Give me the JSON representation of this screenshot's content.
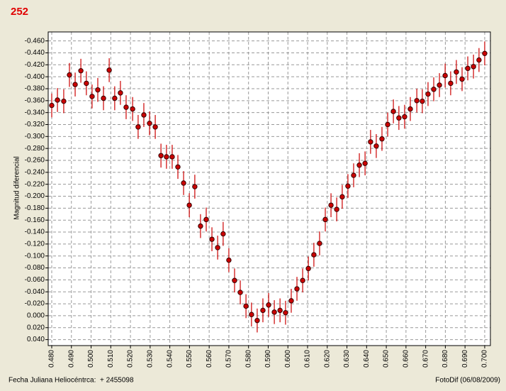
{
  "chart_data": {
    "type": "scatter",
    "title": "252",
    "y_label": "Magnitud diferencial",
    "x_label": "Fecha Juliana Heliocéntrca:  + 2455098",
    "credit": "FotoDif (06/08/2009)",
    "series": [
      {
        "color": "#cc0000",
        "error": 0.02,
        "x": [
          0.48,
          0.4829,
          0.4861,
          0.489,
          0.4919,
          0.4948,
          0.4976,
          0.5005,
          0.5034,
          0.5063,
          0.5092,
          0.512,
          0.5149,
          0.5178,
          0.5211,
          0.5239,
          0.5268,
          0.5297,
          0.5326,
          0.5355,
          0.5383,
          0.5412,
          0.5441,
          0.547,
          0.5499,
          0.5527,
          0.5556,
          0.5585,
          0.5614,
          0.5643,
          0.5671,
          0.57,
          0.5729,
          0.5758,
          0.5787,
          0.5815,
          0.5844,
          0.5873,
          0.5902,
          0.5931,
          0.596,
          0.5988,
          0.6017,
          0.6046,
          0.6075,
          0.6104,
          0.6132,
          0.6161,
          0.619,
          0.6219,
          0.6248,
          0.6276,
          0.6305,
          0.6334,
          0.6363,
          0.6392,
          0.642,
          0.6449,
          0.6478,
          0.6507,
          0.6536,
          0.6564,
          0.6593,
          0.6622,
          0.6655,
          0.6683,
          0.6712,
          0.6741,
          0.677,
          0.6799,
          0.6827,
          0.6856,
          0.6885,
          0.6914,
          0.6943,
          0.6971,
          0.7
        ],
        "values": [
          -0.352,
          -0.361,
          -0.359,
          -0.403,
          -0.387,
          -0.41,
          -0.389,
          -0.367,
          -0.378,
          -0.364,
          -0.411,
          -0.364,
          -0.373,
          -0.349,
          -0.346,
          -0.316,
          -0.336,
          -0.322,
          -0.316,
          -0.268,
          -0.266,
          -0.266,
          -0.249,
          -0.222,
          -0.185,
          -0.216,
          -0.15,
          -0.161,
          -0.128,
          -0.114,
          -0.137,
          -0.093,
          -0.059,
          -0.039,
          -0.016,
          -0.002,
          0.008,
          -0.009,
          -0.018,
          -0.006,
          -0.009,
          -0.005,
          -0.025,
          -0.045,
          -0.059,
          -0.079,
          -0.102,
          -0.121,
          -0.161,
          -0.185,
          -0.178,
          -0.199,
          -0.217,
          -0.235,
          -0.252,
          -0.255,
          -0.291,
          -0.284,
          -0.296,
          -0.32,
          -0.342,
          -0.331,
          -0.333,
          -0.346,
          -0.36,
          -0.359,
          -0.371,
          -0.379,
          -0.386,
          -0.402,
          -0.389,
          -0.408,
          -0.396,
          -0.414,
          -0.417,
          -0.428,
          -0.439
        ]
      }
    ],
    "xlim": [
      0.4782,
      0.7029
    ],
    "ylim": [
      0.05,
      -0.475
    ],
    "xticks": [
      {
        "value": 0.48,
        "label": "0.480"
      },
      {
        "value": 0.49,
        "label": "0.490"
      },
      {
        "value": 0.5,
        "label": "0.500"
      },
      {
        "value": 0.51,
        "label": "0.510"
      },
      {
        "value": 0.52,
        "label": "0.520"
      },
      {
        "value": 0.53,
        "label": "0.530"
      },
      {
        "value": 0.54,
        "label": "0.540"
      },
      {
        "value": 0.55,
        "label": "0.550"
      },
      {
        "value": 0.56,
        "label": "0.560"
      },
      {
        "value": 0.57,
        "label": "0.570"
      },
      {
        "value": 0.58,
        "label": "0.580"
      },
      {
        "value": 0.59,
        "label": "0.590"
      },
      {
        "value": 0.6,
        "label": "0.600"
      },
      {
        "value": 0.61,
        "label": "0.610"
      },
      {
        "value": 0.62,
        "label": "0.620"
      },
      {
        "value": 0.63,
        "label": "0.630"
      },
      {
        "value": 0.64,
        "label": "0.640"
      },
      {
        "value": 0.65,
        "label": "0.650"
      },
      {
        "value": 0.66,
        "label": "0.660"
      },
      {
        "value": 0.67,
        "label": "0.670"
      },
      {
        "value": 0.68,
        "label": "0.680"
      },
      {
        "value": 0.69,
        "label": "0.690"
      },
      {
        "value": 0.7,
        "label": "0.700"
      }
    ],
    "yticks": [
      {
        "value": -0.46,
        "label": "-0.460"
      },
      {
        "value": -0.44,
        "label": "-0.440"
      },
      {
        "value": -0.42,
        "label": "-0.420"
      },
      {
        "value": -0.4,
        "label": "-0.400"
      },
      {
        "value": -0.38,
        "label": "-0.380"
      },
      {
        "value": -0.36,
        "label": "-0.360"
      },
      {
        "value": -0.34,
        "label": "-0.340"
      },
      {
        "value": -0.32,
        "label": "-0.320"
      },
      {
        "value": -0.3,
        "label": "-0.300"
      },
      {
        "value": -0.28,
        "label": "-0.280"
      },
      {
        "value": -0.26,
        "label": "-0.260"
      },
      {
        "value": -0.24,
        "label": "-0.240"
      },
      {
        "value": -0.22,
        "label": "-0.220"
      },
      {
        "value": -0.2,
        "label": "-0.200"
      },
      {
        "value": -0.18,
        "label": "-0.180"
      },
      {
        "value": -0.16,
        "label": "-0.160"
      },
      {
        "value": -0.14,
        "label": "-0.140"
      },
      {
        "value": -0.12,
        "label": "-0.120"
      },
      {
        "value": -0.1,
        "label": "-0.100"
      },
      {
        "value": -0.08,
        "label": "-0.080"
      },
      {
        "value": -0.06,
        "label": "-0.060"
      },
      {
        "value": -0.04,
        "label": "-0.040"
      },
      {
        "value": -0.02,
        "label": "-0.020"
      },
      {
        "value": 0,
        "label": "0.000"
      },
      {
        "value": 0.02,
        "label": "0.020"
      },
      {
        "value": 0.04,
        "label": "0.040"
      }
    ],
    "grid": true
  }
}
